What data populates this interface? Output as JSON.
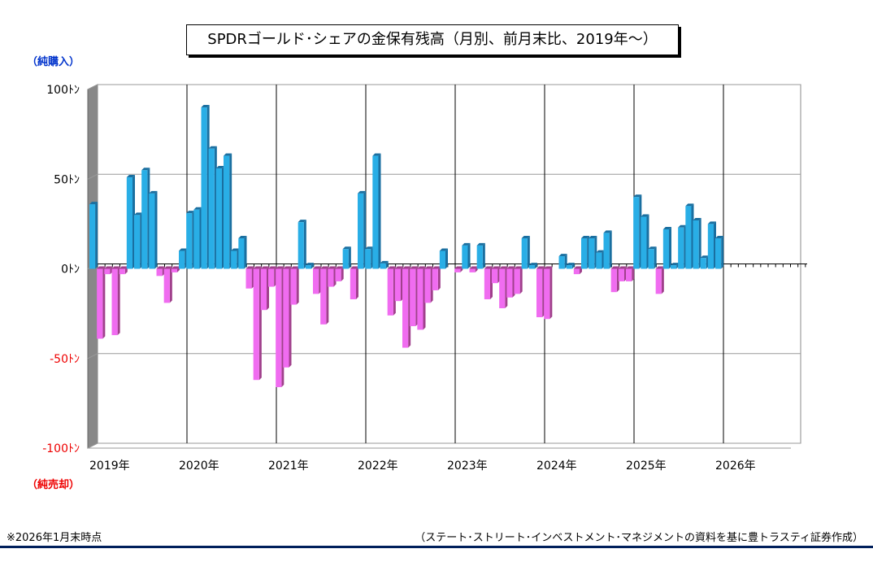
{
  "title": "SPDRゴールド･シェアの金保有残高（月別、前月末比、2019年～）",
  "labels": {
    "buy": "（純購入）",
    "sell": "（純売却）",
    "footnote": "※2026年1月末時点",
    "source": "（ステート･ストリート･インベストメント･マネジメントの資料を基に豊トラスティ証券作成）"
  },
  "colors": {
    "positive": "#29aee6",
    "negative": "#f06cf0",
    "negative_dark": "#a0408c",
    "positive_dark": "#1a6fa0",
    "axis_panel": "#888888"
  },
  "chart_data": {
    "type": "bar",
    "unit": "トン",
    "ylim": [
      -100,
      100
    ],
    "y_ticks": [
      {
        "value": 100,
        "label": "100ﾄﾝ"
      },
      {
        "value": 50,
        "label": "50ﾄﾝ"
      },
      {
        "value": 0,
        "label": "0ﾄﾝ"
      },
      {
        "value": -50,
        "label": "-50ﾄﾝ"
      },
      {
        "value": -100,
        "label": "-100ﾄﾝ"
      }
    ],
    "years": [
      "2019年",
      "2020年",
      "2021年",
      "2022年",
      "2023年",
      "2024年",
      "2025年",
      "2026年"
    ],
    "grid": true,
    "values": [
      36,
      -39,
      -3,
      -37,
      -3,
      51,
      30,
      55,
      42,
      -4,
      -19,
      -2,
      10,
      31,
      33,
      90,
      67,
      56,
      63,
      10,
      17,
      -11,
      -62,
      -23,
      -10,
      -66,
      -55,
      -20,
      26,
      2,
      -14,
      -31,
      -10,
      -7,
      11,
      -17,
      42,
      11,
      63,
      3,
      -26,
      -18,
      -44,
      -32,
      -34,
      -19,
      -12,
      10,
      0,
      -2,
      13,
      -2,
      13,
      -17,
      -8,
      -22,
      -16,
      -14,
      17,
      2,
      -27,
      -28,
      0,
      7,
      2,
      -3,
      17,
      17,
      9,
      20,
      -13,
      -7,
      -7,
      40,
      29,
      11,
      -14,
      22,
      2,
      23,
      35,
      27,
      6,
      25,
      17
    ]
  }
}
